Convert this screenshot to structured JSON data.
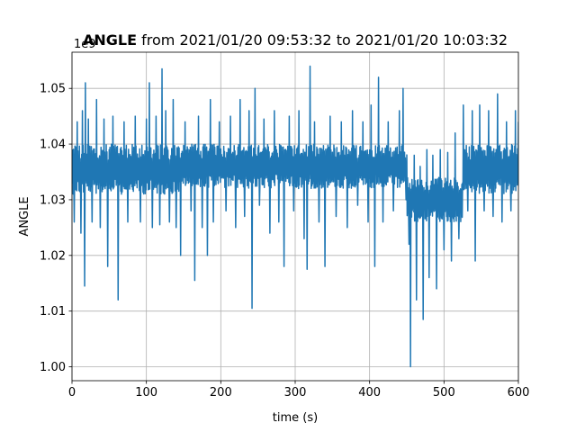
{
  "chart_data": {
    "type": "line",
    "title_bold": "ANGLE",
    "title_rest": " from 2021/01/20 09:53:32 to 2021/01/20 10:03:32",
    "xlabel": "time (s)",
    "ylabel": "ANGLE",
    "y_offset_label": "1e9",
    "xlim": [
      0,
      600
    ],
    "ylim": [
      0.9975,
      1.0565
    ],
    "x_ticks": [
      0,
      100,
      200,
      300,
      400,
      500,
      600
    ],
    "x_tick_labels": [
      "0",
      "100",
      "200",
      "300",
      "400",
      "500",
      "600"
    ],
    "y_ticks": [
      1.0,
      1.01,
      1.02,
      1.03,
      1.04,
      1.05
    ],
    "y_tick_labels": [
      "1.00",
      "1.01",
      "1.02",
      "1.03",
      "1.04",
      "1.05"
    ],
    "grid": true,
    "series": [
      {
        "color": "#1f77b4",
        "segments": [
          {
            "x_start": 0,
            "x_end": 145,
            "center": 1.0355,
            "spread": 0.0045
          },
          {
            "x_start": 145,
            "x_end": 450,
            "center": 1.036,
            "spread": 0.004
          },
          {
            "x_start": 450,
            "x_end": 525,
            "center": 1.03,
            "spread": 0.004
          },
          {
            "x_start": 525,
            "x_end": 600,
            "center": 1.0355,
            "spread": 0.0045
          }
        ],
        "spikes": [
          {
            "x": 3,
            "y": 1.026
          },
          {
            "x": 7,
            "y": 1.044
          },
          {
            "x": 12,
            "y": 1.024
          },
          {
            "x": 14,
            "y": 1.046
          },
          {
            "x": 17,
            "y": 1.0145
          },
          {
            "x": 18,
            "y": 1.051
          },
          {
            "x": 22,
            "y": 1.0445
          },
          {
            "x": 27,
            "y": 1.026
          },
          {
            "x": 33,
            "y": 1.048
          },
          {
            "x": 38,
            "y": 1.025
          },
          {
            "x": 43,
            "y": 1.0445
          },
          {
            "x": 48,
            "y": 1.018
          },
          {
            "x": 55,
            "y": 1.045
          },
          {
            "x": 62,
            "y": 1.012
          },
          {
            "x": 70,
            "y": 1.044
          },
          {
            "x": 75,
            "y": 1.026
          },
          {
            "x": 85,
            "y": 1.045
          },
          {
            "x": 92,
            "y": 1.026
          },
          {
            "x": 100,
            "y": 1.0445
          },
          {
            "x": 104,
            "y": 1.051
          },
          {
            "x": 108,
            "y": 1.025
          },
          {
            "x": 113,
            "y": 1.045
          },
          {
            "x": 118,
            "y": 1.0255
          },
          {
            "x": 121,
            "y": 1.0535
          },
          {
            "x": 126,
            "y": 1.046
          },
          {
            "x": 131,
            "y": 1.026
          },
          {
            "x": 136,
            "y": 1.048
          },
          {
            "x": 140,
            "y": 1.025
          },
          {
            "x": 146,
            "y": 1.02
          },
          {
            "x": 152,
            "y": 1.044
          },
          {
            "x": 160,
            "y": 1.028
          },
          {
            "x": 165,
            "y": 1.0155
          },
          {
            "x": 170,
            "y": 1.045
          },
          {
            "x": 175,
            "y": 1.025
          },
          {
            "x": 182,
            "y": 1.02
          },
          {
            "x": 186,
            "y": 1.048
          },
          {
            "x": 190,
            "y": 1.026
          },
          {
            "x": 198,
            "y": 1.044
          },
          {
            "x": 207,
            "y": 1.028
          },
          {
            "x": 213,
            "y": 1.045
          },
          {
            "x": 220,
            "y": 1.025
          },
          {
            "x": 226,
            "y": 1.048
          },
          {
            "x": 232,
            "y": 1.027
          },
          {
            "x": 238,
            "y": 1.046
          },
          {
            "x": 242,
            "y": 1.0105
          },
          {
            "x": 246,
            "y": 1.05
          },
          {
            "x": 252,
            "y": 1.029
          },
          {
            "x": 258,
            "y": 1.0445
          },
          {
            "x": 266,
            "y": 1.024
          },
          {
            "x": 272,
            "y": 1.046
          },
          {
            "x": 278,
            "y": 1.026
          },
          {
            "x": 285,
            "y": 1.018
          },
          {
            "x": 292,
            "y": 1.045
          },
          {
            "x": 298,
            "y": 1.028
          },
          {
            "x": 305,
            "y": 1.046
          },
          {
            "x": 312,
            "y": 1.023
          },
          {
            "x": 316,
            "y": 1.0175
          },
          {
            "x": 320,
            "y": 1.054
          },
          {
            "x": 326,
            "y": 1.044
          },
          {
            "x": 332,
            "y": 1.026
          },
          {
            "x": 340,
            "y": 1.018
          },
          {
            "x": 347,
            "y": 1.045
          },
          {
            "x": 355,
            "y": 1.027
          },
          {
            "x": 362,
            "y": 1.044
          },
          {
            "x": 370,
            "y": 1.025
          },
          {
            "x": 377,
            "y": 1.046
          },
          {
            "x": 384,
            "y": 1.029
          },
          {
            "x": 391,
            "y": 1.044
          },
          {
            "x": 398,
            "y": 1.026
          },
          {
            "x": 402,
            "y": 1.047
          },
          {
            "x": 407,
            "y": 1.018
          },
          {
            "x": 412,
            "y": 1.052
          },
          {
            "x": 418,
            "y": 1.026
          },
          {
            "x": 425,
            "y": 1.044
          },
          {
            "x": 432,
            "y": 1.028
          },
          {
            "x": 440,
            "y": 1.046
          },
          {
            "x": 445,
            "y": 1.05
          },
          {
            "x": 449,
            "y": 1.03
          },
          {
            "x": 453,
            "y": 1.022
          },
          {
            "x": 455,
            "y": 1.0
          },
          {
            "x": 460,
            "y": 1.038
          },
          {
            "x": 463,
            "y": 1.012
          },
          {
            "x": 468,
            "y": 1.036
          },
          {
            "x": 472,
            "y": 1.0085
          },
          {
            "x": 477,
            "y": 1.039
          },
          {
            "x": 480,
            "y": 1.016
          },
          {
            "x": 485,
            "y": 1.038
          },
          {
            "x": 490,
            "y": 1.014
          },
          {
            "x": 495,
            "y": 1.039
          },
          {
            "x": 500,
            "y": 1.021
          },
          {
            "x": 505,
            "y": 1.0385
          },
          {
            "x": 510,
            "y": 1.019
          },
          {
            "x": 515,
            "y": 1.042
          },
          {
            "x": 520,
            "y": 1.023
          },
          {
            "x": 526,
            "y": 1.047
          },
          {
            "x": 532,
            "y": 1.028
          },
          {
            "x": 538,
            "y": 1.046
          },
          {
            "x": 542,
            "y": 1.019
          },
          {
            "x": 548,
            "y": 1.047
          },
          {
            "x": 554,
            "y": 1.028
          },
          {
            "x": 560,
            "y": 1.046
          },
          {
            "x": 566,
            "y": 1.027
          },
          {
            "x": 572,
            "y": 1.049
          },
          {
            "x": 578,
            "y": 1.026
          },
          {
            "x": 584,
            "y": 1.044
          },
          {
            "x": 590,
            "y": 1.028
          },
          {
            "x": 596,
            "y": 1.046
          },
          {
            "x": 600,
            "y": 1.044
          }
        ]
      }
    ]
  }
}
